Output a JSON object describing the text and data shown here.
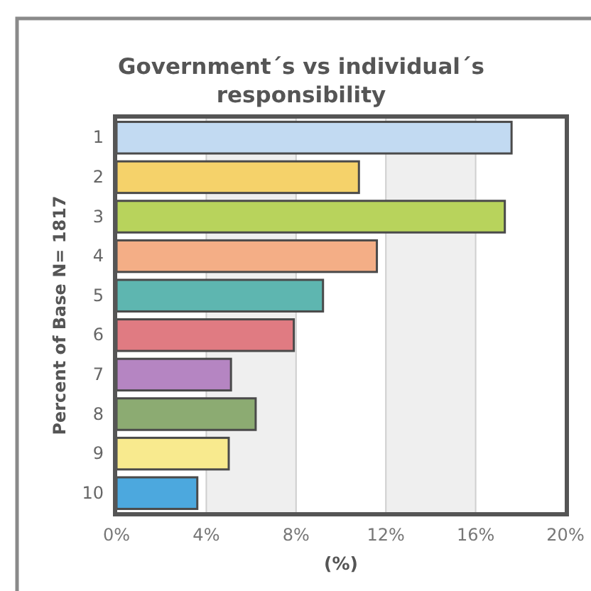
{
  "chart_data": {
    "type": "bar",
    "orientation": "horizontal",
    "title": "Government´s vs individual´s responsibility",
    "xlabel": "(%)",
    "ylabel": "Percent of Base N= 1817",
    "categories": [
      "1",
      "2",
      "3",
      "4",
      "5",
      "6",
      "7",
      "8",
      "9",
      "10"
    ],
    "values": [
      17.6,
      10.8,
      17.3,
      11.6,
      9.2,
      7.9,
      5.1,
      6.2,
      5.0,
      3.6
    ],
    "colors": [
      "#c2daf2",
      "#f5d26a",
      "#b8d35c",
      "#f4ae86",
      "#5eb6b0",
      "#e07b82",
      "#b585c2",
      "#8cab72",
      "#f8ea8e",
      "#4ca8de"
    ],
    "xlim": [
      0,
      20
    ],
    "xticks": [
      {
        "value": 0,
        "label": "0%"
      },
      {
        "value": 4,
        "label": "4%"
      },
      {
        "value": 8,
        "label": "8%"
      },
      {
        "value": 12,
        "label": "12%"
      },
      {
        "value": 16,
        "label": "16%"
      },
      {
        "value": 20,
        "label": "20%"
      }
    ],
    "grid": "x",
    "bands": [
      {
        "axis": "x",
        "from": 4,
        "to": 8,
        "color": "#efefef"
      },
      {
        "axis": "x",
        "from": 12,
        "to": 16,
        "color": "#efefef"
      }
    ]
  }
}
